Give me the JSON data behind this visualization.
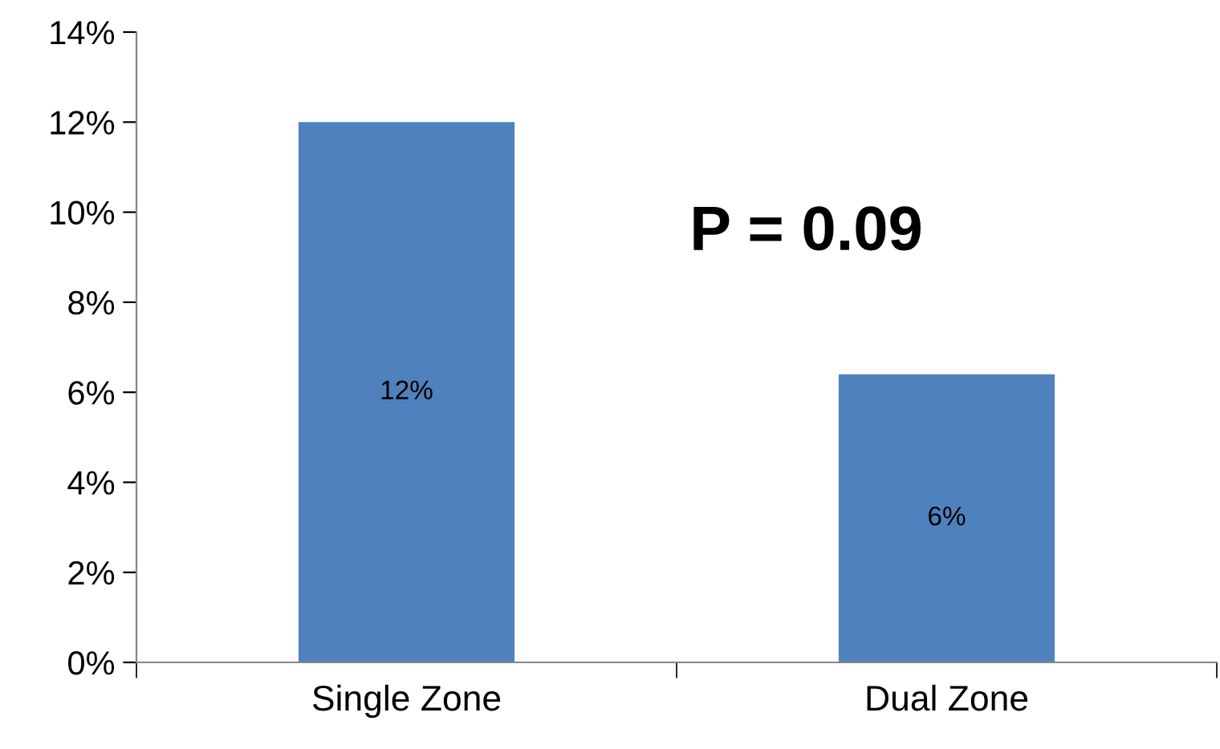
{
  "chart_data": {
    "type": "bar",
    "categories": [
      "Single Zone",
      "Dual Zone"
    ],
    "values": [
      12,
      6.4
    ],
    "value_labels": [
      "12%",
      "6%"
    ],
    "color": "#4f81bd",
    "ylim": [
      0,
      14
    ],
    "yticks": [
      {
        "value": 0,
        "label": "0%"
      },
      {
        "value": 2,
        "label": "2%"
      },
      {
        "value": 4,
        "label": "4%"
      },
      {
        "value": 6,
        "label": "6%"
      },
      {
        "value": 8,
        "label": "8%"
      },
      {
        "value": 10,
        "label": "10%"
      },
      {
        "value": 12,
        "label": "12%"
      },
      {
        "value": 14,
        "label": "14%"
      }
    ],
    "annotations": [
      "P = 0.09"
    ],
    "grid": false,
    "legend": false
  }
}
